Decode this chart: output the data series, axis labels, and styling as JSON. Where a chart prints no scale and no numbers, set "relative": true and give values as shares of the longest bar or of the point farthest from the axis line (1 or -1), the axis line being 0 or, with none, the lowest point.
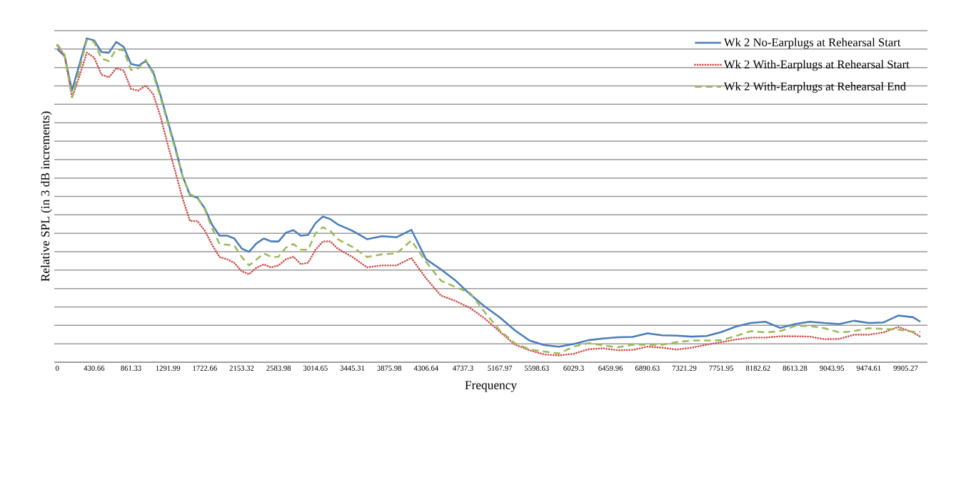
{
  "chart_data": {
    "type": "line",
    "relative": true,
    "xlabel": "Frequency",
    "ylabel": "Relative SPL (in 3 dB increments)",
    "x": [
      0,
      86.13,
      172.27,
      258.4,
      344.53,
      430.66,
      516.8,
      602.93,
      689.06,
      775.2,
      861.33,
      947.46,
      1033.59,
      1119.73,
      1205.86,
      1291.99,
      1378.13,
      1464.26,
      1550.39,
      1636.52,
      1722.66,
      1808.79,
      1894.92,
      1981.05,
      2067.19,
      2153.32,
      2239.45,
      2325.59,
      2411.72,
      2497.85,
      2583.98,
      2670.12,
      2756.25,
      2842.38,
      2928.52,
      3014.65,
      3100.78,
      3186.91,
      3273.05,
      3445.31,
      3617.58,
      3789.84,
      3962.11,
      4134.38,
      4306.64,
      4478.91,
      4651.17,
      4823.44,
      4995.7,
      5167.97,
      5340.23,
      5512.5,
      5684.77,
      5857.03,
      6029.3,
      6201.56,
      6373.83,
      6546.09,
      6718.36,
      6890.63,
      7062.89,
      7235.16,
      7407.42,
      7579.69,
      7751.95,
      7924.22,
      8096.48,
      8268.75,
      8441.02,
      8613.28,
      8785.55,
      8957.81,
      9130.08,
      9302.34,
      9474.61,
      9646.88,
      9819.14,
      9991.41,
      10077.54
    ],
    "xlim": [
      -35,
      10160
    ],
    "xticks": [
      {
        "value": 0,
        "label": "0"
      },
      {
        "value": 430.66,
        "label": "430.66"
      },
      {
        "value": 861.33,
        "label": "861.33"
      },
      {
        "value": 1291.99,
        "label": "1291.99"
      },
      {
        "value": 1722.66,
        "label": "1722.66"
      },
      {
        "value": 2153.32,
        "label": "2153.32"
      },
      {
        "value": 2583.98,
        "label": "2583.98"
      },
      {
        "value": 3014.65,
        "label": "3014.65"
      },
      {
        "value": 3445.31,
        "label": "3445.31"
      },
      {
        "value": 3875.98,
        "label": "3875.98"
      },
      {
        "value": 4306.64,
        "label": "4306.64"
      },
      {
        "value": 4737.3,
        "label": "4737.3"
      },
      {
        "value": 5167.97,
        "label": "5167.97"
      },
      {
        "value": 5598.63,
        "label": "5598.63"
      },
      {
        "value": 6029.3,
        "label": "6029.3"
      },
      {
        "value": 6459.96,
        "label": "6459.96"
      },
      {
        "value": 6890.63,
        "label": "6890.63"
      },
      {
        "value": 7321.29,
        "label": "7321.29"
      },
      {
        "value": 7751.95,
        "label": "7751.95"
      },
      {
        "value": 8182.62,
        "label": "8182.62"
      },
      {
        "value": 8613.28,
        "label": "8613.28"
      },
      {
        "value": 9043.95,
        "label": "9043.95"
      },
      {
        "value": 9474.61,
        "label": "9474.61"
      },
      {
        "value": 9905.27,
        "label": "9905.27"
      }
    ],
    "grid": "y",
    "legend": "top right",
    "tick_labels": "x",
    "series": [
      {
        "name": "Wk 2 No-Earplugs at Rehearsal Start",
        "color": "#4a7ebb",
        "line_style": "solid",
        "values": [
          0.967,
          0.945,
          0.839,
          0.919,
          1.0,
          0.994,
          0.958,
          0.956,
          0.989,
          0.974,
          0.921,
          0.916,
          0.93,
          0.897,
          0.824,
          0.743,
          0.663,
          0.574,
          0.516,
          0.508,
          0.475,
          0.424,
          0.391,
          0.391,
          0.382,
          0.351,
          0.341,
          0.367,
          0.382,
          0.373,
          0.373,
          0.4,
          0.408,
          0.391,
          0.393,
          0.429,
          0.45,
          0.442,
          0.426,
          0.406,
          0.38,
          0.389,
          0.386,
          0.409,
          0.318,
          0.287,
          0.252,
          0.209,
          0.171,
          0.138,
          0.099,
          0.067,
          0.053,
          0.048,
          0.056,
          0.068,
          0.073,
          0.077,
          0.078,
          0.089,
          0.083,
          0.082,
          0.079,
          0.081,
          0.093,
          0.11,
          0.121,
          0.125,
          0.106,
          0.118,
          0.125,
          0.121,
          0.118,
          0.128,
          0.121,
          0.123,
          0.144,
          0.139,
          0.125
        ]
      },
      {
        "name": "Wk 2 With-Earplugs at Rehearsal Start",
        "color": "#d0504c",
        "line_style": "dotted",
        "values": [
          0.978,
          0.949,
          0.817,
          0.883,
          0.956,
          0.941,
          0.888,
          0.88,
          0.908,
          0.901,
          0.844,
          0.839,
          0.855,
          0.828,
          0.758,
          0.67,
          0.589,
          0.505,
          0.436,
          0.436,
          0.406,
          0.362,
          0.325,
          0.318,
          0.307,
          0.281,
          0.272,
          0.292,
          0.302,
          0.293,
          0.299,
          0.318,
          0.326,
          0.303,
          0.307,
          0.347,
          0.373,
          0.373,
          0.351,
          0.325,
          0.293,
          0.299,
          0.299,
          0.322,
          0.259,
          0.206,
          0.189,
          0.167,
          0.134,
          0.094,
          0.055,
          0.037,
          0.024,
          0.021,
          0.026,
          0.04,
          0.043,
          0.037,
          0.038,
          0.048,
          0.045,
          0.039,
          0.045,
          0.054,
          0.062,
          0.07,
          0.076,
          0.076,
          0.08,
          0.08,
          0.079,
          0.071,
          0.072,
          0.085,
          0.085,
          0.092,
          0.109,
          0.092,
          0.079
        ]
      },
      {
        "name": "Wk 2 With-Earplugs at Rehearsal End",
        "color": "#9bbb59",
        "line_style": "dashed",
        "values": [
          0.982,
          0.949,
          0.818,
          0.905,
          0.994,
          0.989,
          0.938,
          0.93,
          0.967,
          0.963,
          0.902,
          0.908,
          0.934,
          0.89,
          0.817,
          0.736,
          0.656,
          0.574,
          0.519,
          0.508,
          0.472,
          0.413,
          0.365,
          0.363,
          0.36,
          0.325,
          0.299,
          0.317,
          0.336,
          0.325,
          0.326,
          0.354,
          0.365,
          0.348,
          0.347,
          0.398,
          0.417,
          0.406,
          0.38,
          0.356,
          0.325,
          0.333,
          0.336,
          0.376,
          0.31,
          0.252,
          0.232,
          0.213,
          0.153,
          0.098,
          0.059,
          0.04,
          0.033,
          0.027,
          0.048,
          0.059,
          0.052,
          0.046,
          0.054,
          0.054,
          0.054,
          0.062,
          0.067,
          0.067,
          0.068,
          0.081,
          0.096,
          0.092,
          0.096,
          0.112,
          0.112,
          0.105,
          0.092,
          0.096,
          0.105,
          0.103,
          0.101,
          0.094,
          0.094
        ]
      }
    ]
  }
}
